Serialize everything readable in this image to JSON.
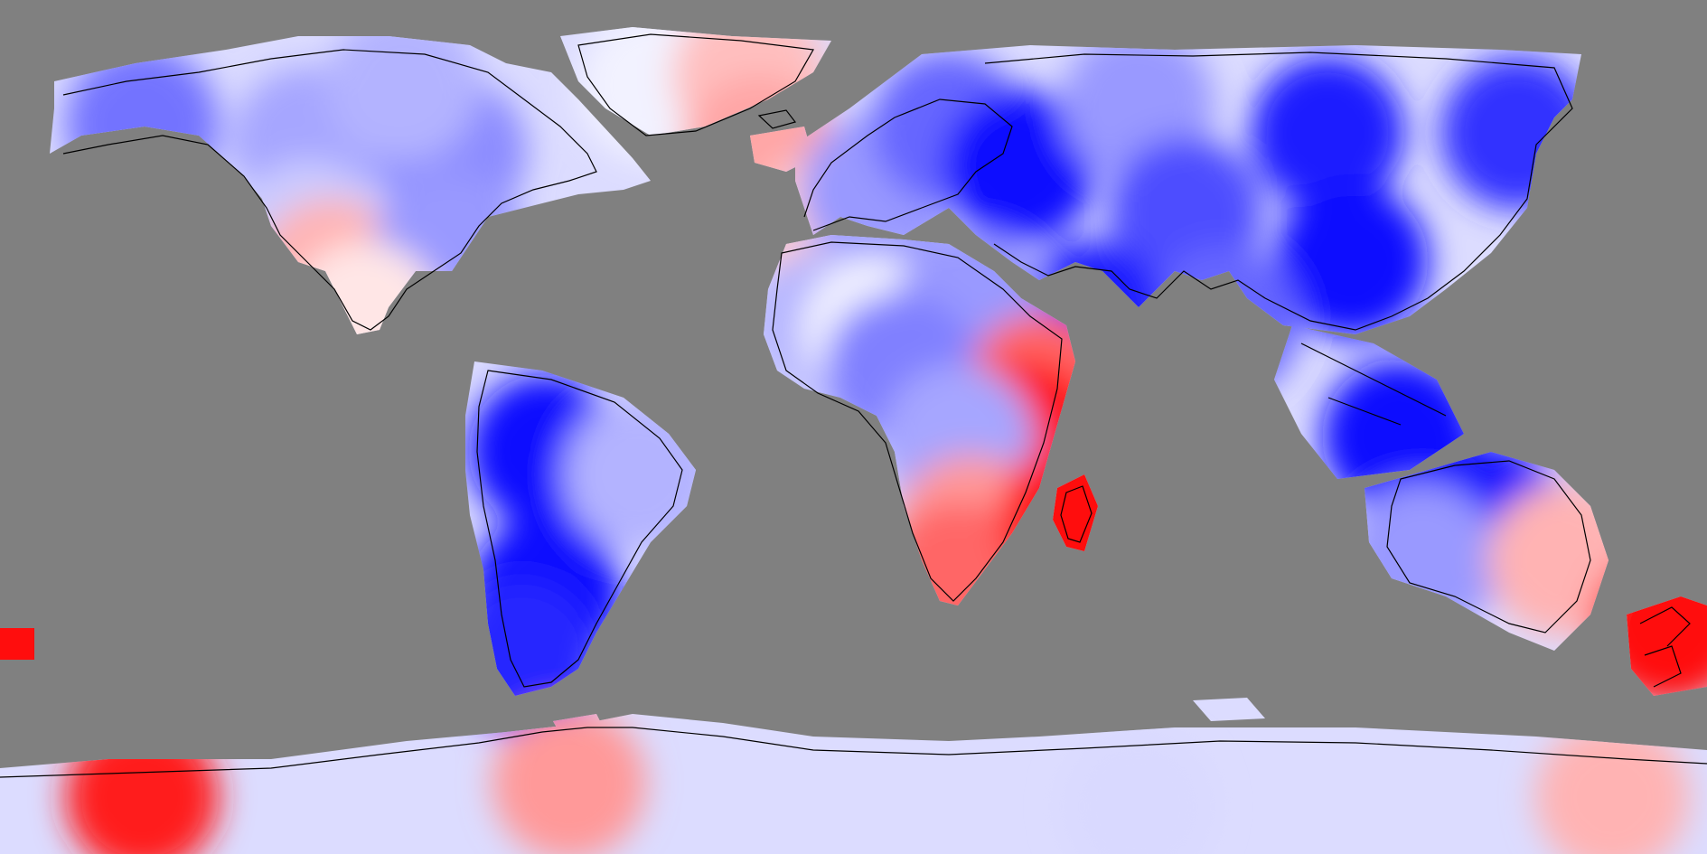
{
  "map": {
    "projection": "equirectangular",
    "extent": {
      "lon": [
        -180,
        180
      ],
      "lat": [
        -90,
        90
      ]
    },
    "background_color": "#808080",
    "coastline_color": "#000000",
    "colormap": {
      "type": "diverging",
      "negative_color": "#0000ff",
      "neutral_color": "#ffffff",
      "positive_color": "#ff0000"
    },
    "missing_data_color": "#808080",
    "cells": [
      {
        "id": "alaska",
        "lon": -150,
        "lat": 64,
        "value": -0.55
      },
      {
        "id": "canada-west",
        "lon": -115,
        "lat": 60,
        "value": -0.35
      },
      {
        "id": "canada-east",
        "lon": -85,
        "lat": 58,
        "value": -0.45
      },
      {
        "id": "canadian-arctic",
        "lon": -95,
        "lat": 72,
        "value": -0.3
      },
      {
        "id": "greenland",
        "lon": -42,
        "lat": 72,
        "value": -0.05
      },
      {
        "id": "greenland-east",
        "lon": -22,
        "lat": 74,
        "value": 0.25
      },
      {
        "id": "usa-west",
        "lon": -115,
        "lat": 40,
        "value": -0.2
      },
      {
        "id": "usa-southwest",
        "lon": -110,
        "lat": 32,
        "value": 0.3
      },
      {
        "id": "usa-east",
        "lon": -85,
        "lat": 38,
        "value": -0.4
      },
      {
        "id": "mexico",
        "lon": -103,
        "lat": 23,
        "value": 0.1
      },
      {
        "id": "amazon",
        "lon": -65,
        "lat": -5,
        "value": -0.95
      },
      {
        "id": "brazil-east",
        "lon": -45,
        "lat": -10,
        "value": -0.3
      },
      {
        "id": "argentina",
        "lon": -65,
        "lat": -35,
        "value": -0.95
      },
      {
        "id": "patagonia",
        "lon": -70,
        "lat": -48,
        "value": -0.85
      },
      {
        "id": "iceland-atlantic",
        "lon": -20,
        "lat": 58,
        "value": 0.35
      },
      {
        "id": "iberia",
        "lon": -5,
        "lat": 42,
        "value": 0.2
      },
      {
        "id": "europe-west",
        "lon": 5,
        "lat": 50,
        "value": -0.4
      },
      {
        "id": "scandinavia",
        "lon": 20,
        "lat": 63,
        "value": -0.6
      },
      {
        "id": "europe-east",
        "lon": 35,
        "lat": 55,
        "value": -0.95
      },
      {
        "id": "russia-north",
        "lon": 60,
        "lat": 68,
        "value": -0.4
      },
      {
        "id": "siberia",
        "lon": 100,
        "lat": 62,
        "value": -0.9
      },
      {
        "id": "central-asia",
        "lon": 70,
        "lat": 45,
        "value": -0.7
      },
      {
        "id": "china",
        "lon": 105,
        "lat": 35,
        "value": -0.95
      },
      {
        "id": "east-siberia",
        "lon": 140,
        "lat": 62,
        "value": -0.8
      },
      {
        "id": "india",
        "lon": 78,
        "lat": 22,
        "value": -0.6
      },
      {
        "id": "arabia",
        "lon": 50,
        "lat": 23,
        "value": -0.9
      },
      {
        "id": "sahara-west",
        "lon": -5,
        "lat": 22,
        "value": -0.3
      },
      {
        "id": "sahara-center",
        "lon": 5,
        "lat": 20,
        "value": -0.05
      },
      {
        "id": "sahara-east",
        "lon": 25,
        "lat": 25,
        "value": -0.4
      },
      {
        "id": "sahel",
        "lon": 10,
        "lat": 12,
        "value": -0.5
      },
      {
        "id": "horn-of-africa",
        "lon": 40,
        "lat": 8,
        "value": 0.6
      },
      {
        "id": "east-africa",
        "lon": 36,
        "lat": -2,
        "value": 0.95
      },
      {
        "id": "congo",
        "lon": 22,
        "lat": -3,
        "value": -0.35
      },
      {
        "id": "southern-africa",
        "lon": 25,
        "lat": -22,
        "value": 0.4
      },
      {
        "id": "south-africa-cape",
        "lon": 22,
        "lat": -32,
        "value": 0.6
      },
      {
        "id": "madagascar",
        "lon": 47,
        "lat": -19,
        "value": 0.95
      },
      {
        "id": "indonesia",
        "lon": 115,
        "lat": -2,
        "value": -0.95
      },
      {
        "id": "australia-north",
        "lon": 135,
        "lat": -20,
        "value": -0.95
      },
      {
        "id": "australia-west",
        "lon": 120,
        "lat": -28,
        "value": -0.4
      },
      {
        "id": "australia-east",
        "lon": 150,
        "lat": -28,
        "value": 0.3
      },
      {
        "id": "new-zealand",
        "lon": 172,
        "lat": -42,
        "value": 0.95
      },
      {
        "id": "antarctica-west",
        "lon": -150,
        "lat": -78,
        "value": 0.9
      },
      {
        "id": "antarctica-peninsula",
        "lon": -60,
        "lat": -75,
        "value": 0.4
      },
      {
        "id": "antarctica-east",
        "lon": 60,
        "lat": -80,
        "value": -0.15
      },
      {
        "id": "antarctica-ross",
        "lon": 160,
        "lat": -78,
        "value": 0.3
      },
      {
        "id": "south-pacific-speck",
        "lon": -178,
        "lat": -43,
        "value": 0.95
      }
    ]
  }
}
